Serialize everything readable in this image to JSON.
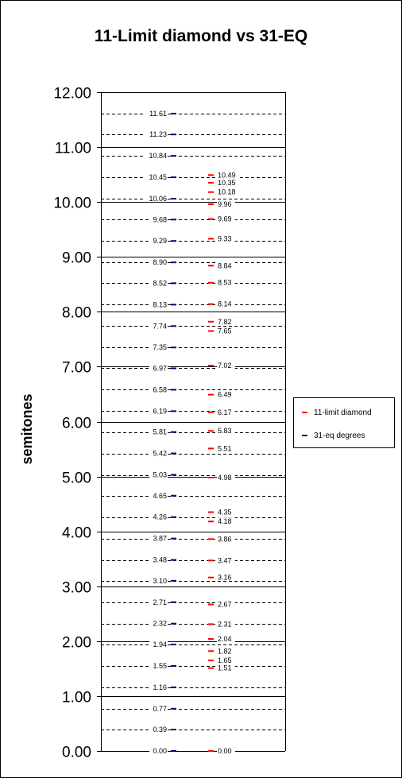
{
  "chart_data": {
    "type": "scatter",
    "title": "11-Limit diamond vs 31-EQ",
    "xlabel": "",
    "ylabel": "semitones",
    "ylim": [
      0,
      12
    ],
    "y_ticks": [
      "0.00",
      "1.00",
      "2.00",
      "3.00",
      "4.00",
      "5.00",
      "6.00",
      "7.00",
      "8.00",
      "9.00",
      "10.00",
      "11.00",
      "12.00"
    ],
    "grid": "horizontal lines: solid at each integer semitone, dashed at each 31-eq degree",
    "legend_position": "right",
    "series": [
      {
        "name": "11-limit diamond",
        "color": "#ff0000",
        "values": [
          0.0,
          1.51,
          1.65,
          1.82,
          2.04,
          2.31,
          2.67,
          3.16,
          3.47,
          3.86,
          4.18,
          4.35,
          4.98,
          5.51,
          5.83,
          6.17,
          6.49,
          7.02,
          7.65,
          7.82,
          8.14,
          8.53,
          8.84,
          9.33,
          9.69,
          9.96,
          10.18,
          10.35,
          10.49
        ],
        "labels": [
          "0.00",
          "1.51",
          "1.65",
          "1.82",
          "2.04",
          "2.31",
          "2.67",
          "3.16",
          "3.47",
          "3.86",
          "4.18",
          "4.35",
          "4.98",
          "5.51",
          "5.83",
          "6.17",
          "6.49",
          "7.02",
          "7.65",
          "7.82",
          "8.14",
          "8.53",
          "8.84",
          "9.33",
          "9.69",
          "9.96",
          "10.18",
          "10.35",
          "10.49"
        ]
      },
      {
        "name": "31-eq degrees",
        "color": "#000080",
        "values": [
          0.0,
          0.39,
          0.77,
          1.16,
          1.55,
          1.94,
          2.32,
          2.71,
          3.1,
          3.48,
          3.87,
          4.26,
          4.65,
          5.03,
          5.42,
          5.81,
          6.19,
          6.58,
          6.97,
          7.35,
          7.74,
          8.13,
          8.52,
          8.9,
          9.29,
          9.68,
          10.06,
          10.45,
          10.84,
          11.23,
          11.61
        ],
        "labels": [
          "0.00",
          "0.39",
          "0.77",
          "1.16",
          "1.55",
          "1.94",
          "2.32",
          "2.71",
          "3.10",
          "3.48",
          "3.87",
          "4.26",
          "4.65",
          "5.03",
          "5.42",
          "5.81",
          "6.19",
          "6.58",
          "6.97",
          "7.35",
          "7.74",
          "8.13",
          "8.52",
          "8.90",
          "9.29",
          "9.68",
          "10.06",
          "10.45",
          "10.84",
          "11.23",
          "11.61"
        ]
      }
    ]
  }
}
